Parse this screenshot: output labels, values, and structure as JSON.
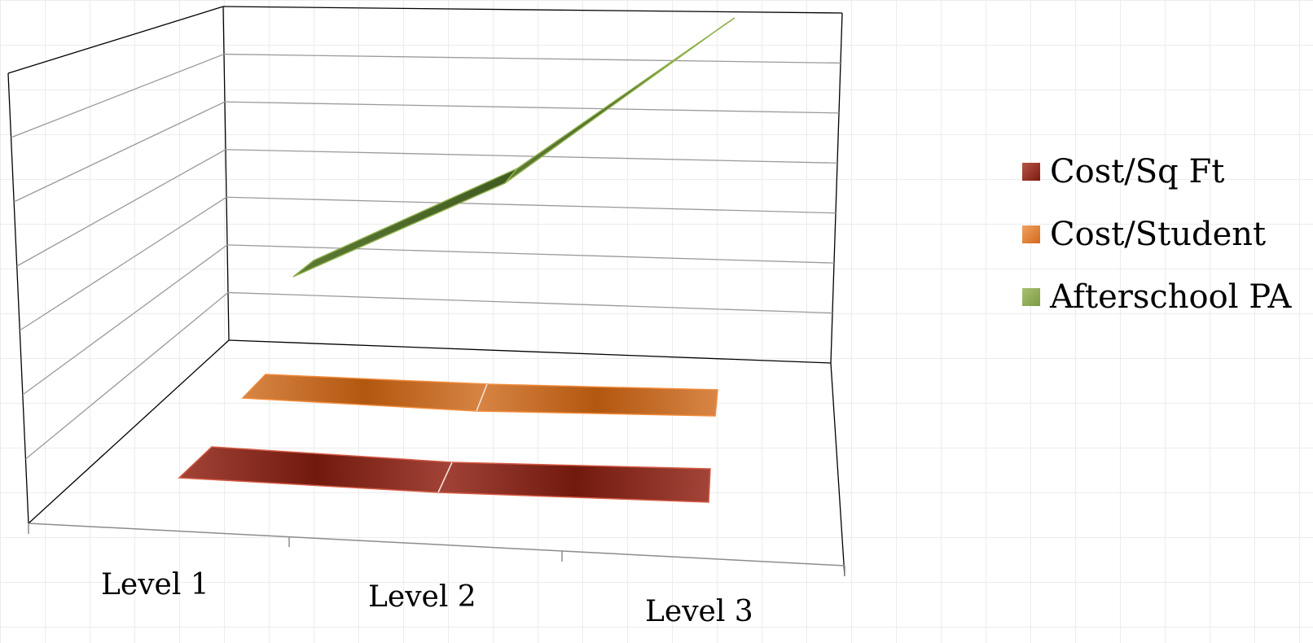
{
  "chart_data": {
    "type": "line",
    "style": "3d-ribbon",
    "categories": [
      "Level 1",
      "Level 2",
      "Level 3"
    ],
    "series": [
      {
        "name": "Cost/Sq Ft",
        "values": [
          0.3,
          0.3,
          0.3
        ],
        "color": "#8b2a1a"
      },
      {
        "name": "Cost/Student",
        "values": [
          0.7,
          0.7,
          0.7
        ],
        "color": "#c8641a"
      },
      {
        "name": "Afterschool PA",
        "values": [
          2.0,
          3.7,
          6.7
        ],
        "color": "#4a6b25"
      }
    ],
    "ylim": [
      0,
      7
    ],
    "grid": true,
    "legend_position": "right"
  }
}
